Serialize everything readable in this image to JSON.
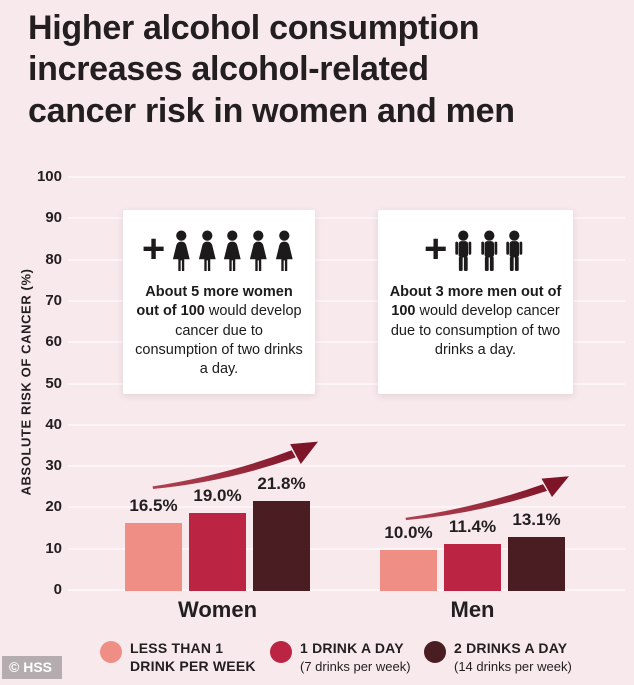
{
  "page": {
    "background": "#f7e9ec",
    "watermark": "© HSS"
  },
  "title": {
    "lines": [
      "Higher alcohol consumption",
      "increases alcohol-related",
      "cancer risk in women and men"
    ],
    "color": "#231e20"
  },
  "chart_data": {
    "type": "bar",
    "title": "Higher alcohol consumption increases alcohol-related cancer risk in women and men",
    "ylabel": "ABSOLUTE RISK OF CANCER (%)",
    "ylim": [
      0,
      100
    ],
    "ytick_step": 10,
    "grid": true,
    "legend_position": "bottom",
    "categories": [
      "Women",
      "Men"
    ],
    "series": [
      {
        "name": "LESS THAN 1 DRINK PER WEEK",
        "sublabel": "",
        "color": "#ef8e84",
        "values": [
          16.5,
          10.0
        ],
        "labels": [
          "16.5%",
          "10.0%"
        ]
      },
      {
        "name": "1 DRINK A DAY",
        "sublabel": "(7 drinks per week)",
        "color": "#bb2442",
        "values": [
          19.0,
          11.4
        ],
        "labels": [
          "19.0%",
          "11.4%"
        ]
      },
      {
        "name": "2 DRINKS A DAY",
        "sublabel": "(14 drinks per week)",
        "color": "#4a1d23",
        "values": [
          21.8,
          13.1
        ],
        "labels": [
          "21.8%",
          "13.1%"
        ]
      }
    ],
    "trend_arrow_color_start": "#b24252",
    "trend_arrow_color_end": "#7e1428"
  },
  "annotations": [
    {
      "group": "Women",
      "icon": "woman",
      "icon_count": 5,
      "plus": "+",
      "bold_text": "About 5 more women out of 100",
      "regular_text": " would develop cancer due to consumption of two drinks a day."
    },
    {
      "group": "Men",
      "icon": "man",
      "icon_count": 3,
      "plus": "+",
      "bold_text": "About 3 more men out of 100",
      "regular_text": " would develop cancer due to consumption of two drinks a day."
    }
  ]
}
